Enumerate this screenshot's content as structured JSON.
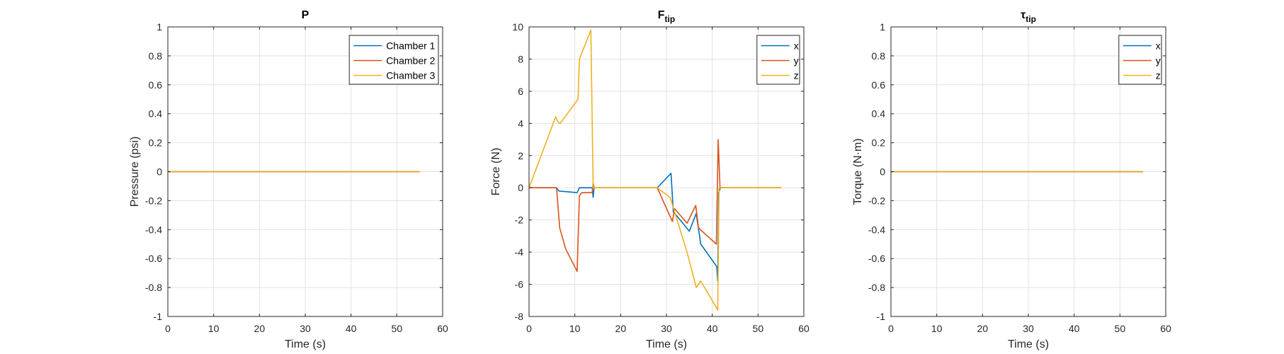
{
  "colors": {
    "blue": "#0072BD",
    "red": "#D95319",
    "yellow": "#EDB120",
    "grid": "#e1e1e1",
    "axis": "#262626"
  },
  "chart_data": [
    {
      "type": "line",
      "title": "P",
      "xlabel": "Time (s)",
      "ylabel": "Pressure (psi)",
      "xlim": [
        0,
        60
      ],
      "ylim": [
        -1,
        1
      ],
      "xticks": [
        0,
        10,
        20,
        30,
        40,
        50,
        60
      ],
      "yticks": [
        -1,
        -0.8,
        -0.6,
        -0.4,
        -0.2,
        0,
        0.2,
        0.4,
        0.6,
        0.8,
        1
      ],
      "grid": true,
      "legend_position": "top-right",
      "series": [
        {
          "name": "Chamber 1",
          "color": "#0072BD",
          "points": [
            [
              0,
              0
            ],
            [
              55,
              0
            ]
          ]
        },
        {
          "name": "Chamber 2",
          "color": "#D95319",
          "points": [
            [
              0,
              0
            ],
            [
              55,
              0
            ]
          ]
        },
        {
          "name": "Chamber 3",
          "color": "#EDB120",
          "points": [
            [
              0,
              0
            ],
            [
              55,
              0
            ]
          ]
        }
      ]
    },
    {
      "type": "line",
      "title": "F",
      "title_sub": "tip",
      "xlabel": "Time (s)",
      "ylabel": "Force (N)",
      "xlim": [
        0,
        60
      ],
      "ylim": [
        -8,
        10
      ],
      "xticks": [
        0,
        10,
        20,
        30,
        40,
        50,
        60
      ],
      "yticks": [
        -8,
        -6,
        -4,
        -2,
        0,
        2,
        4,
        6,
        8,
        10
      ],
      "grid": true,
      "legend_position": "top-right",
      "series": [
        {
          "name": "x",
          "color": "#0072BD",
          "points": [
            [
              0,
              0
            ],
            [
              6,
              0
            ],
            [
              6.5,
              -0.2
            ],
            [
              10.5,
              -0.3
            ],
            [
              11,
              0
            ],
            [
              13.8,
              0
            ],
            [
              14,
              -0.6
            ],
            [
              14.2,
              0
            ],
            [
              28,
              0
            ],
            [
              31,
              0.9
            ],
            [
              31.5,
              -1.5
            ],
            [
              33,
              -2
            ],
            [
              35,
              -2.7
            ],
            [
              36.5,
              -1.6
            ],
            [
              37.5,
              -3.5
            ],
            [
              41,
              -4.9
            ],
            [
              41.2,
              -5.8
            ],
            [
              41.4,
              -0.3
            ],
            [
              41.8,
              0
            ],
            [
              55,
              0
            ]
          ]
        },
        {
          "name": "y",
          "color": "#D95319",
          "points": [
            [
              0,
              0
            ],
            [
              6,
              0
            ],
            [
              6.7,
              -2.5
            ],
            [
              8,
              -3.8
            ],
            [
              10.5,
              -5.2
            ],
            [
              11,
              -0.5
            ],
            [
              11.5,
              -0.3
            ],
            [
              13.8,
              -0.3
            ],
            [
              14,
              0.3
            ],
            [
              14.2,
              0
            ],
            [
              28,
              0
            ],
            [
              31.3,
              -2.1
            ],
            [
              31.8,
              -1.3
            ],
            [
              34.5,
              -2.2
            ],
            [
              36.4,
              -1.1
            ],
            [
              37,
              -2.5
            ],
            [
              40.9,
              -3.5
            ],
            [
              41.3,
              3
            ],
            [
              41.7,
              0
            ],
            [
              55,
              0
            ]
          ]
        },
        {
          "name": "z",
          "color": "#EDB120",
          "points": [
            [
              0,
              0
            ],
            [
              5.8,
              4.4
            ],
            [
              6.3,
              4.1
            ],
            [
              6.8,
              4
            ],
            [
              10.7,
              5.5
            ],
            [
              11,
              8
            ],
            [
              13.5,
              9.8
            ],
            [
              14,
              0
            ],
            [
              28,
              0
            ],
            [
              30.8,
              -0.6
            ],
            [
              34.5,
              -4
            ],
            [
              36.5,
              -6.2
            ],
            [
              37.5,
              -5.8
            ],
            [
              41.2,
              -7.6
            ],
            [
              41.5,
              0
            ],
            [
              55,
              0
            ]
          ]
        }
      ]
    },
    {
      "type": "line",
      "title": "τ",
      "title_sub": "tip",
      "xlabel": "Time (s)",
      "ylabel": "Torque (N·m)",
      "xlim": [
        0,
        60
      ],
      "ylim": [
        -1,
        1
      ],
      "xticks": [
        0,
        10,
        20,
        30,
        40,
        50,
        60
      ],
      "yticks": [
        -1,
        -0.8,
        -0.6,
        -0.4,
        -0.2,
        0,
        0.2,
        0.4,
        0.6,
        0.8,
        1
      ],
      "grid": true,
      "legend_position": "top-right",
      "series": [
        {
          "name": "x",
          "color": "#0072BD",
          "points": [
            [
              0,
              0
            ],
            [
              55,
              0
            ]
          ]
        },
        {
          "name": "y",
          "color": "#D95319",
          "points": [
            [
              0,
              0
            ],
            [
              55,
              0
            ]
          ]
        },
        {
          "name": "z",
          "color": "#EDB120",
          "points": [
            [
              0,
              0
            ],
            [
              55,
              0
            ]
          ]
        }
      ]
    }
  ]
}
